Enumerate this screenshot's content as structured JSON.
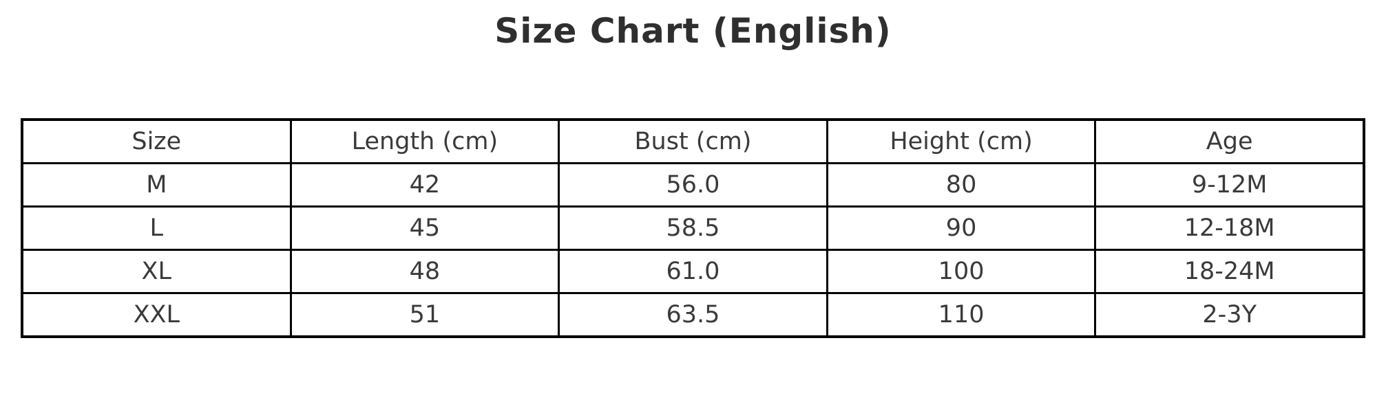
{
  "title": "Size Chart (English)",
  "chart_data": {
    "type": "table",
    "title": "Size Chart (English)",
    "columns": [
      "Size",
      "Length (cm)",
      "Bust (cm)",
      "Height (cm)",
      "Age"
    ],
    "rows": [
      [
        "M",
        "42",
        "56.0",
        "80",
        "9-12M"
      ],
      [
        "L",
        "45",
        "58.5",
        "90",
        "12-18M"
      ],
      [
        "XL",
        "48",
        "61.0",
        "100",
        "18-24M"
      ],
      [
        "XXL",
        "51",
        "63.5",
        "110",
        "2-3Y"
      ]
    ]
  },
  "colors": {
    "background": "#ffffff",
    "border": "#000000",
    "title_text": "#2f2f2f",
    "cell_text": "#3a3a3a"
  }
}
